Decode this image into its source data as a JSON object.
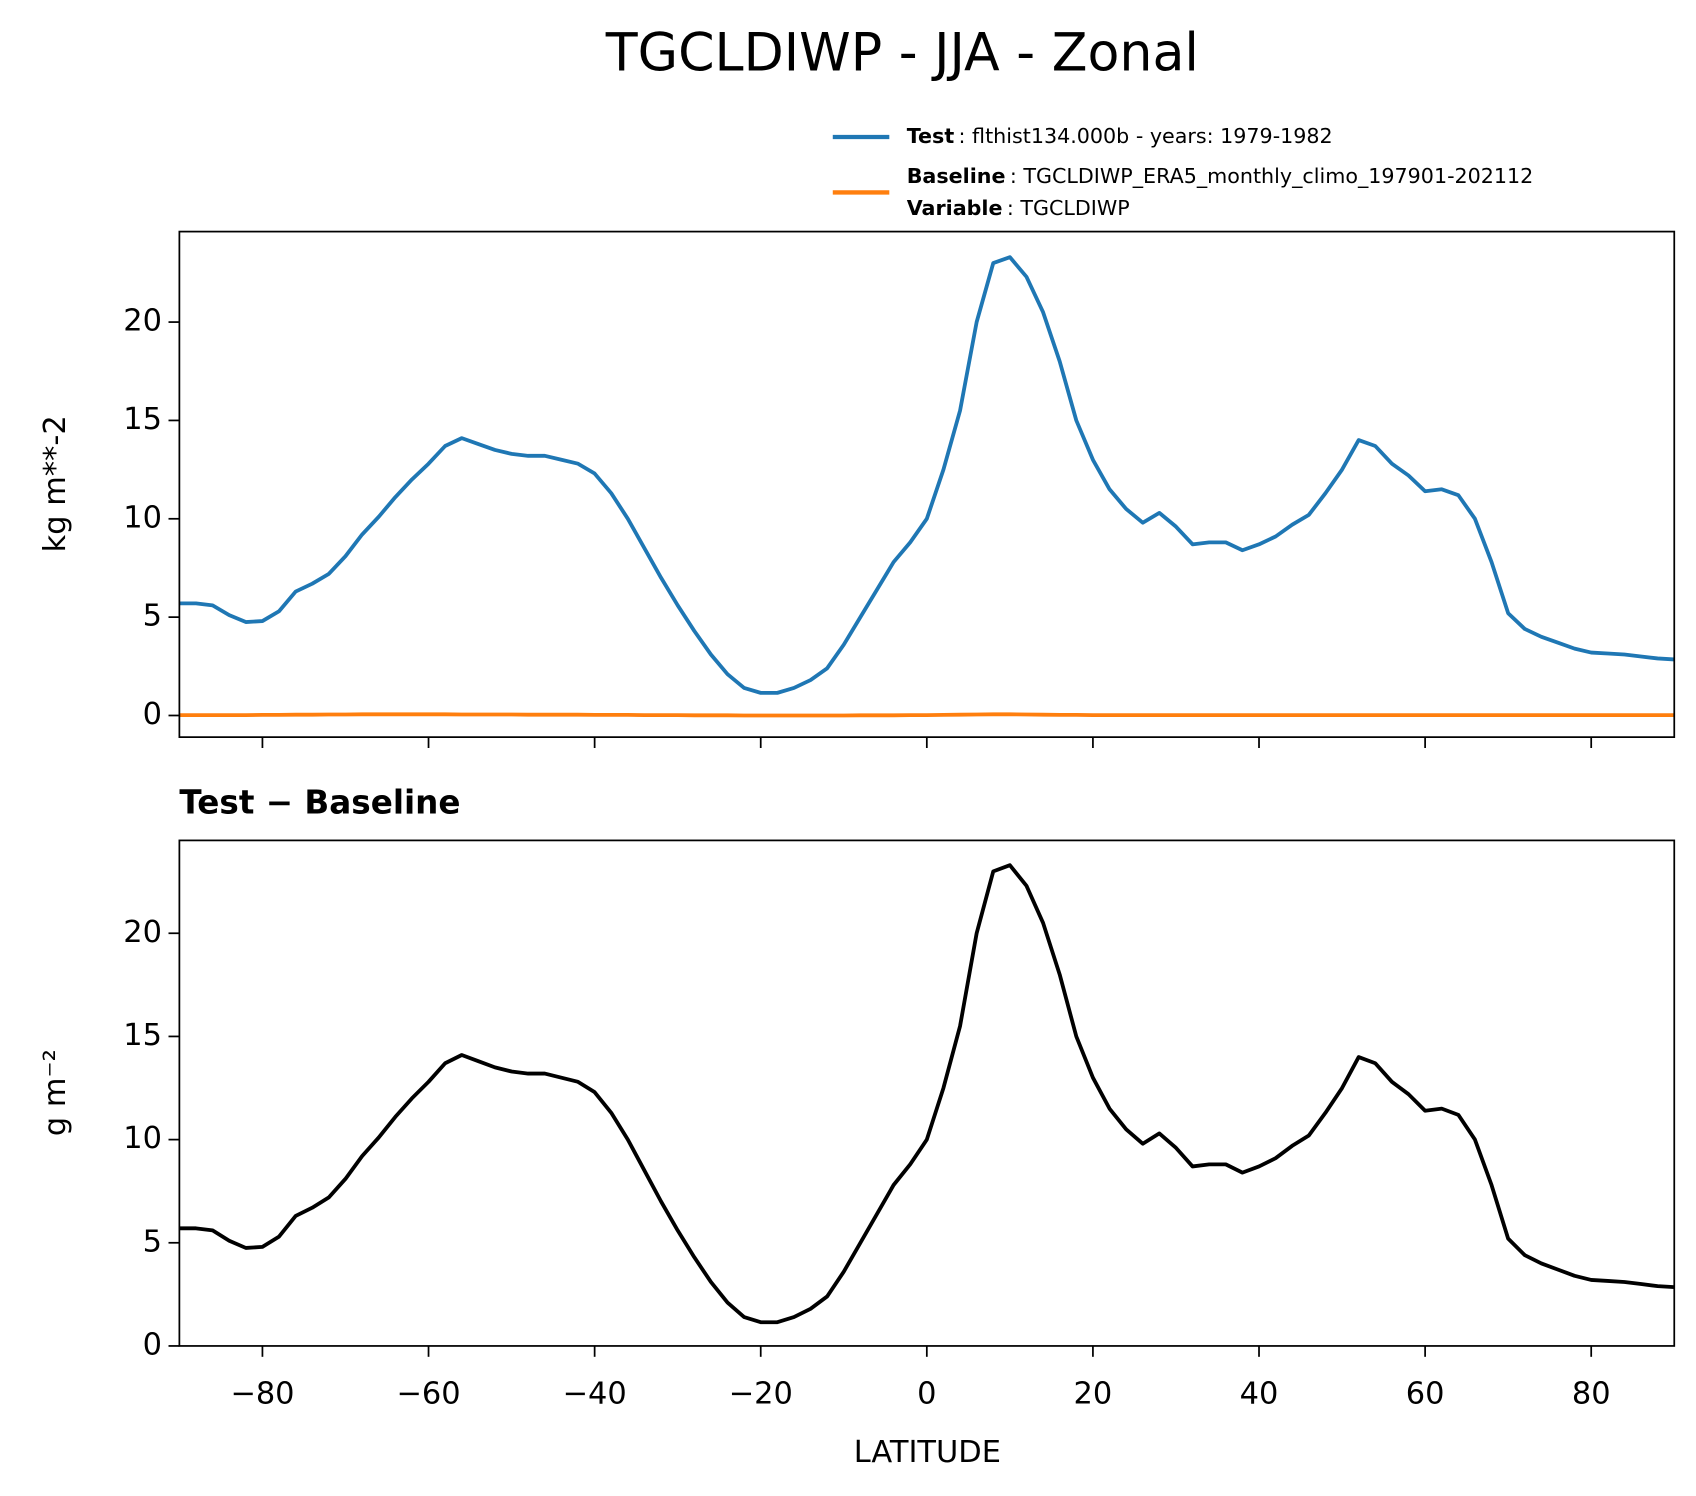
{
  "title": "TGCLDIWP - JJA - Zonal",
  "chart_data": [
    {
      "type": "line",
      "ylabel": "kg m**-2",
      "x": [
        -90,
        -88,
        -86,
        -84,
        -82,
        -80,
        -78,
        -76,
        -74,
        -72,
        -70,
        -68,
        -66,
        -64,
        -62,
        -60,
        -58,
        -56,
        -54,
        -52,
        -50,
        -48,
        -46,
        -44,
        -42,
        -40,
        -38,
        -36,
        -34,
        -32,
        -30,
        -28,
        -26,
        -24,
        -22,
        -20,
        -18,
        -16,
        -14,
        -12,
        -10,
        -8,
        -6,
        -4,
        -2,
        0,
        2,
        4,
        6,
        8,
        10,
        12,
        14,
        16,
        18,
        20,
        22,
        24,
        26,
        28,
        30,
        32,
        34,
        36,
        38,
        40,
        42,
        44,
        46,
        48,
        50,
        52,
        54,
        56,
        58,
        60,
        62,
        64,
        66,
        68,
        70,
        72,
        74,
        76,
        78,
        80,
        82,
        84,
        86,
        88,
        90
      ],
      "series": [
        {
          "name": "Test",
          "description": ": flthist134.000b - years: 1979-1982",
          "color": "#1f77b4",
          "values": [
            5.7,
            5.7,
            5.6,
            5.1,
            4.75,
            4.8,
            5.3,
            6.3,
            6.7,
            7.2,
            8.1,
            9.2,
            10.1,
            11.1,
            12.0,
            12.8,
            13.7,
            14.1,
            13.8,
            13.5,
            13.3,
            13.2,
            13.2,
            13.0,
            12.8,
            12.3,
            11.3,
            10.0,
            8.5,
            7.0,
            5.6,
            4.3,
            3.1,
            2.1,
            1.4,
            1.15,
            1.15,
            1.4,
            1.8,
            2.4,
            3.6,
            5.0,
            6.4,
            7.8,
            8.8,
            10.0,
            12.5,
            15.5,
            20.0,
            23.0,
            23.3,
            22.3,
            20.5,
            18.0,
            15.0,
            13.0,
            11.5,
            10.5,
            9.8,
            10.3,
            9.6,
            8.7,
            8.8,
            8.8,
            8.4,
            8.7,
            9.1,
            9.7,
            10.2,
            11.3,
            12.5,
            14.0,
            13.7,
            12.8,
            12.2,
            11.4,
            11.5,
            11.2,
            10.0,
            7.8,
            5.2,
            4.4,
            4.0,
            3.7,
            3.4,
            3.2,
            3.15,
            3.1,
            3.0,
            2.9,
            2.85
          ]
        },
        {
          "name": "Baseline",
          "description": ": TGCLDIWP_ERA5_monthly_climo_197901-202112",
          "extra_name": "Variable",
          "extra_description": ": TGCLDIWP",
          "color": "#ff7f0e",
          "values": [
            0.02,
            0.02,
            0.02,
            0.02,
            0.02,
            0.03,
            0.03,
            0.04,
            0.04,
            0.05,
            0.05,
            0.06,
            0.06,
            0.06,
            0.06,
            0.06,
            0.06,
            0.05,
            0.05,
            0.05,
            0.05,
            0.04,
            0.04,
            0.04,
            0.04,
            0.03,
            0.03,
            0.03,
            0.02,
            0.02,
            0.02,
            0.01,
            0.01,
            0.01,
            0.0,
            0.0,
            0.0,
            0.0,
            0.0,
            0.0,
            0.0,
            0.01,
            0.01,
            0.01,
            0.02,
            0.02,
            0.03,
            0.04,
            0.05,
            0.06,
            0.06,
            0.05,
            0.04,
            0.03,
            0.03,
            0.02,
            0.02,
            0.02,
            0.02,
            0.02,
            0.02,
            0.02,
            0.02,
            0.02,
            0.02,
            0.02,
            0.02,
            0.02,
            0.02,
            0.02,
            0.02,
            0.02,
            0.02,
            0.02,
            0.02,
            0.02,
            0.02,
            0.02,
            0.02,
            0.02,
            0.02,
            0.02,
            0.02,
            0.02,
            0.02,
            0.02,
            0.02,
            0.02,
            0.02,
            0.02,
            0.02
          ]
        }
      ],
      "xlim": [
        -90,
        90
      ],
      "xticks": [
        -80,
        -60,
        -40,
        -20,
        0,
        20,
        40,
        60,
        80
      ],
      "ylim": [
        -1.1,
        24.6
      ],
      "yticks": [
        0,
        5,
        10,
        15,
        20
      ]
    },
    {
      "type": "line",
      "title": "Test − Baseline",
      "ylabel": "g m⁻²",
      "xlabel": "LATITUDE",
      "x": [
        -90,
        -88,
        -86,
        -84,
        -82,
        -80,
        -78,
        -76,
        -74,
        -72,
        -70,
        -68,
        -66,
        -64,
        -62,
        -60,
        -58,
        -56,
        -54,
        -52,
        -50,
        -48,
        -46,
        -44,
        -42,
        -40,
        -38,
        -36,
        -34,
        -32,
        -30,
        -28,
        -26,
        -24,
        -22,
        -20,
        -18,
        -16,
        -14,
        -12,
        -10,
        -8,
        -6,
        -4,
        -2,
        0,
        2,
        4,
        6,
        8,
        10,
        12,
        14,
        16,
        18,
        20,
        22,
        24,
        26,
        28,
        30,
        32,
        34,
        36,
        38,
        40,
        42,
        44,
        46,
        48,
        50,
        52,
        54,
        56,
        58,
        60,
        62,
        64,
        66,
        68,
        70,
        72,
        74,
        76,
        78,
        80,
        82,
        84,
        86,
        88,
        90
      ],
      "color": "#000000",
      "values": [
        5.7,
        5.7,
        5.6,
        5.1,
        4.75,
        4.8,
        5.3,
        6.3,
        6.7,
        7.2,
        8.1,
        9.2,
        10.1,
        11.1,
        12.0,
        12.8,
        13.7,
        14.1,
        13.8,
        13.5,
        13.3,
        13.2,
        13.2,
        13.0,
        12.8,
        12.3,
        11.3,
        10.0,
        8.5,
        7.0,
        5.6,
        4.3,
        3.1,
        2.1,
        1.4,
        1.15,
        1.15,
        1.4,
        1.8,
        2.4,
        3.6,
        5.0,
        6.4,
        7.8,
        8.8,
        10.0,
        12.5,
        15.5,
        20.0,
        23.0,
        23.3,
        22.3,
        20.5,
        18.0,
        15.0,
        13.0,
        11.5,
        10.5,
        9.8,
        10.3,
        9.6,
        8.7,
        8.8,
        8.8,
        8.4,
        8.7,
        9.1,
        9.7,
        10.2,
        11.3,
        12.5,
        14.0,
        13.7,
        12.8,
        12.2,
        11.4,
        11.5,
        11.2,
        10.0,
        7.8,
        5.2,
        4.4,
        4.0,
        3.7,
        3.4,
        3.2,
        3.15,
        3.1,
        3.0,
        2.9,
        2.85
      ],
      "xlim": [
        -90,
        90
      ],
      "xticks": [
        {
          "value": -80,
          "label": "−80"
        },
        {
          "value": -60,
          "label": "−60"
        },
        {
          "value": -40,
          "label": "−40"
        },
        {
          "value": -20,
          "label": "−20"
        },
        0,
        20,
        40,
        60,
        80
      ],
      "ylim": [
        0,
        24.5
      ],
      "yticks": [
        0,
        5,
        10,
        15,
        20
      ]
    }
  ]
}
